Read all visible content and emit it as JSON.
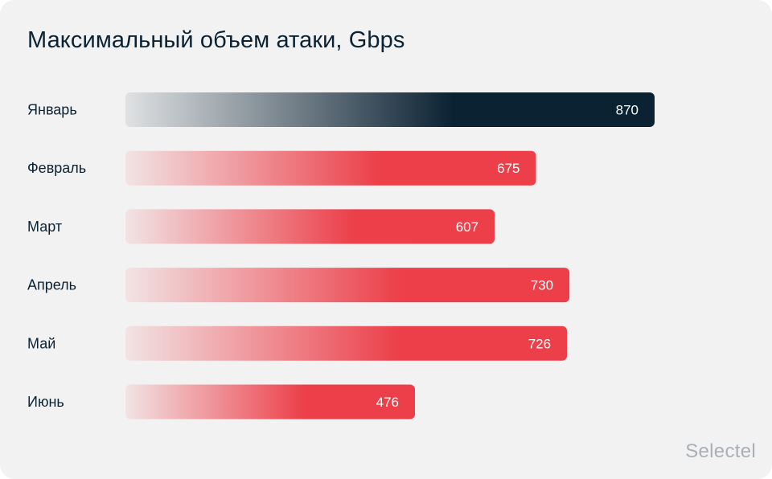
{
  "brand": "Selectel",
  "chart_data": {
    "type": "bar",
    "orientation": "horizontal",
    "title": "Максимальный объем атаки, Gbps",
    "categories": [
      "Январь",
      "Февраль",
      "Март",
      "Апрель",
      "Май",
      "Июнь"
    ],
    "values": [
      870,
      675,
      607,
      730,
      726,
      476
    ],
    "value_labels": [
      "870",
      "675",
      "607",
      "730",
      "726",
      "476"
    ],
    "highlight_index": 0,
    "colors": {
      "highlight": "#0b2233",
      "default": "#ec3f49",
      "text": "#0b2233",
      "label": "#ffffff"
    }
  }
}
